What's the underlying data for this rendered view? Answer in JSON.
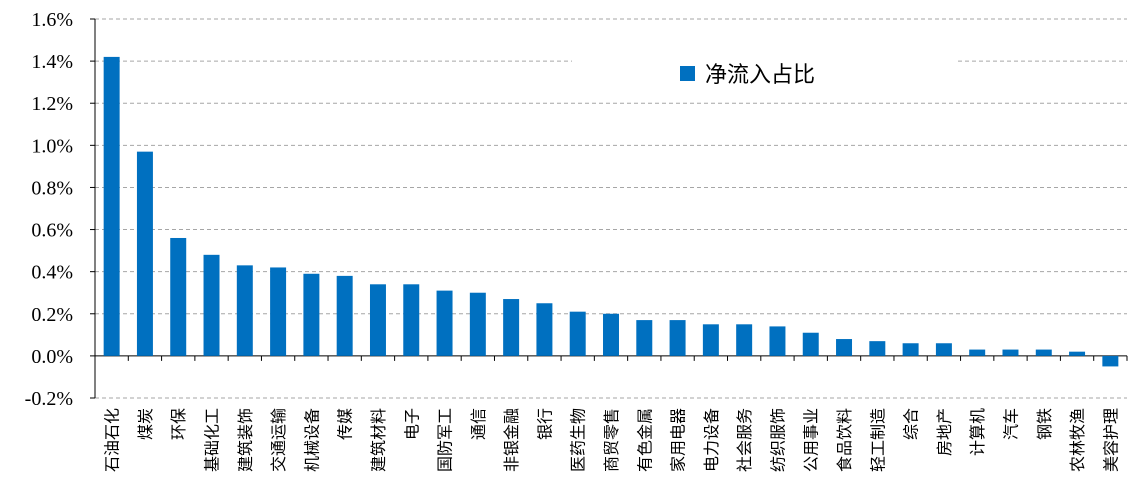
{
  "chart_data": {
    "type": "bar",
    "categories": [
      "石油石化",
      "煤炭",
      "环保",
      "基础化工",
      "建筑装饰",
      "交通运输",
      "机械设备",
      "传媒",
      "建筑材料",
      "电子",
      "国防军工",
      "通信",
      "非银金融",
      "银行",
      "医药生物",
      "商贸零售",
      "有色金属",
      "家用电器",
      "电力设备",
      "社会服务",
      "纺织服饰",
      "公用事业",
      "食品饮料",
      "轻工制造",
      "综合",
      "房地产",
      "计算机",
      "汽车",
      "钢铁",
      "农林牧渔",
      "美容护理"
    ],
    "series": [
      {
        "name": "净流入占比",
        "color": "#0070C0",
        "values": [
          1.42,
          0.97,
          0.56,
          0.48,
          0.43,
          0.42,
          0.39,
          0.38,
          0.34,
          0.34,
          0.31,
          0.3,
          0.27,
          0.25,
          0.21,
          0.2,
          0.17,
          0.17,
          0.15,
          0.15,
          0.14,
          0.11,
          0.08,
          0.07,
          0.06,
          0.06,
          0.03,
          0.03,
          0.03,
          0.02,
          -0.05
        ]
      }
    ],
    "ylim": [
      -0.2,
      1.6
    ],
    "yticks": [
      "-0.2%",
      "0.0%",
      "0.2%",
      "0.4%",
      "0.6%",
      "0.8%",
      "1.0%",
      "1.2%",
      "1.4%",
      "1.6%"
    ],
    "ytick_values": [
      -0.2,
      0.0,
      0.2,
      0.4,
      0.6,
      0.8,
      1.0,
      1.2,
      1.4,
      1.6
    ],
    "grid": "dashed horizontal",
    "legend": "top-right"
  }
}
